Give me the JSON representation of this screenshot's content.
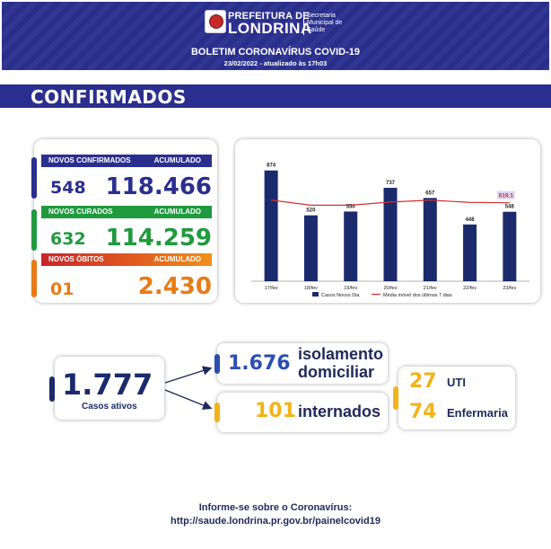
{
  "header": {
    "logo_line1": "PREFEITURA DE",
    "logo_line2": "LONDRINA",
    "logo_subtitle": "Secretaria Municipal de Saúde",
    "title": "BOLETIM CORONAVÍRUS COVID-19",
    "date": "23/02/2022 - atualizado às 17h03"
  },
  "section_title": "CONFIRMADOS",
  "stats": {
    "confirmed": {
      "label": "NOVOS CONFIRMADOS",
      "acc_label": "ACUMULADO",
      "new": "548",
      "total": "118.466",
      "color": "#2a2f8f"
    },
    "recovered": {
      "label": "NOVOS CURADOS",
      "acc_label": "ACUMULADO",
      "new": "632",
      "total": "114.259",
      "color": "#1f9a3e"
    },
    "deaths": {
      "label": "NOVOS ÓBITOS",
      "acc_label": "ACUMULADO",
      "new": "01",
      "total": "2.430",
      "color": "#e87b16"
    }
  },
  "chart_data": {
    "type": "bar",
    "categories": [
      "17/fev",
      "18/fev",
      "19/fev",
      "20/fev",
      "21/fev",
      "22/fev",
      "23/fev"
    ],
    "series": [
      {
        "name": "Casos Novos Dia",
        "type": "bar",
        "values": [
          874,
          520,
          550,
          737,
          657,
          448,
          548
        ],
        "color": "#1a2a6c"
      },
      {
        "name": "Média móvel dos últimos 7 dias",
        "type": "line",
        "values": [
          640,
          600,
          600,
          625,
          640,
          622,
          619.1
        ],
        "color": "#d62f2f"
      }
    ],
    "labelled_moving_average": "619.1",
    "ylim": [
      0,
      950
    ],
    "legend_position": "bottom",
    "grid": false
  },
  "active": {
    "value": "1.777",
    "label": "Casos ativos"
  },
  "home_isolation": {
    "value": "1.676",
    "label_line1": "isolamento",
    "label_line2": "domiciliar"
  },
  "hospitalized": {
    "value": "101",
    "label": "internados"
  },
  "icu": {
    "value": "27",
    "label": "UTI"
  },
  "ward": {
    "value": "74",
    "label": "Enfermaria"
  },
  "footer": {
    "line1": "Informe-se sobre o Coronavírus:",
    "line2": "http://saude.londrina.pr.gov.br/painelcovid19"
  }
}
